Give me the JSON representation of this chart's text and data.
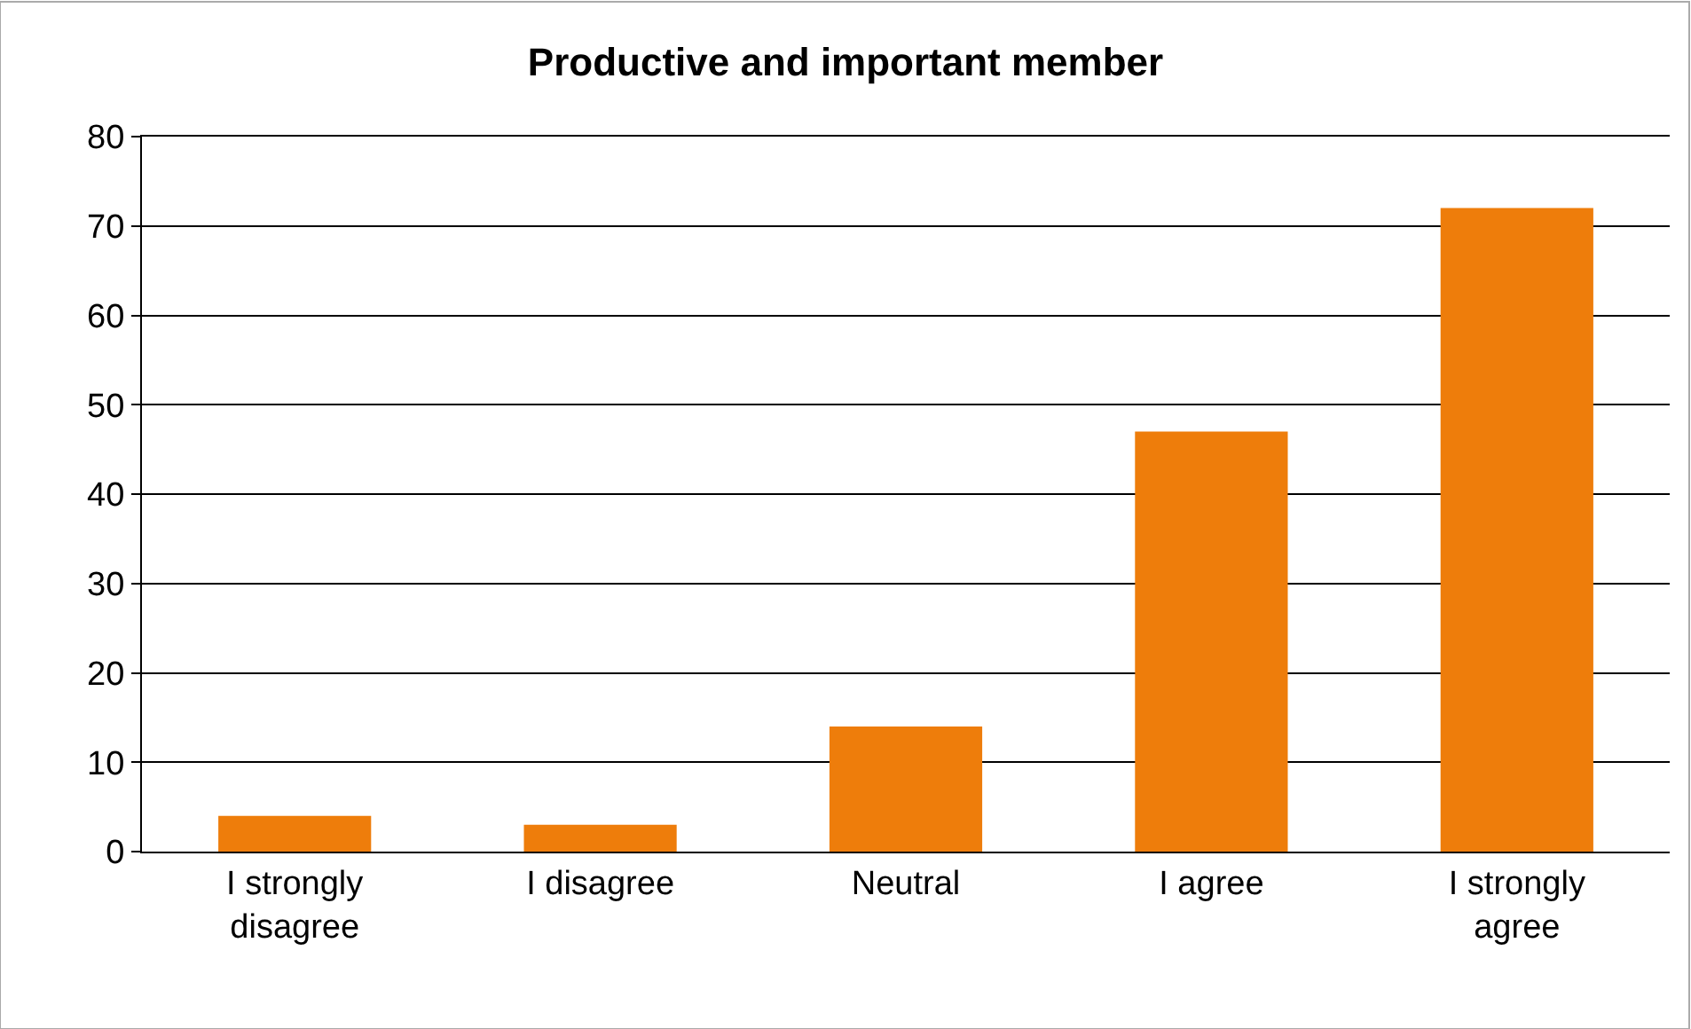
{
  "chart_data": {
    "type": "bar",
    "title": "Productive and important member",
    "categories": [
      "I strongly disagree",
      "I disagree",
      "Neutral",
      "I agree",
      "I strongly agree"
    ],
    "values": [
      4,
      3,
      14,
      47,
      72
    ],
    "color": "#ee7d0b",
    "ylim": [
      0,
      80
    ],
    "yticks": [
      0,
      10,
      20,
      30,
      40,
      50,
      60,
      70,
      80
    ],
    "grid": "y"
  }
}
